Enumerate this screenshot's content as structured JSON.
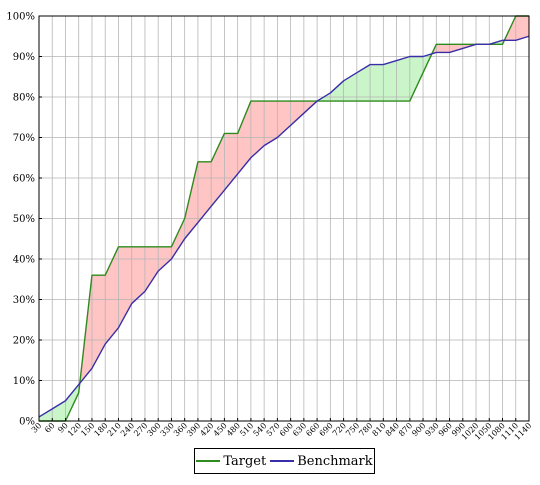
{
  "chart_data": {
    "type": "line",
    "title": "",
    "xlabel": "",
    "ylabel": "",
    "x": [
      30,
      60,
      90,
      120,
      150,
      180,
      210,
      240,
      270,
      300,
      330,
      360,
      390,
      420,
      450,
      480,
      510,
      540,
      570,
      600,
      630,
      660,
      690,
      720,
      750,
      780,
      810,
      840,
      870,
      900,
      930,
      960,
      990,
      1020,
      1050,
      1080,
      1110,
      1140
    ],
    "xticks": [
      "30",
      "60",
      "90",
      "120",
      "150",
      "180",
      "210",
      "240",
      "270",
      "300",
      "330",
      "360",
      "390",
      "420",
      "450",
      "480",
      "510",
      "540",
      "570",
      "600",
      "630",
      "660",
      "690",
      "720",
      "750",
      "780",
      "810",
      "840",
      "870",
      "900",
      "930",
      "960",
      "990",
      "1020",
      "1050",
      "1080",
      "1110",
      "1140"
    ],
    "yticks": [
      "0%",
      "10%",
      "20%",
      "30%",
      "40%",
      "50%",
      "60%",
      "70%",
      "80%",
      "90%",
      "100%"
    ],
    "xlim": [
      30,
      1140
    ],
    "ylim": [
      0,
      100
    ],
    "grid": true,
    "legend_position": "bottom-center",
    "series": [
      {
        "name": "Target",
        "color": "#2e8b1e",
        "values": [
          0,
          0,
          0,
          7,
          36,
          36,
          43,
          43,
          43,
          43,
          43,
          50,
          64,
          64,
          71,
          71,
          79,
          79,
          79,
          79,
          79,
          79,
          79,
          79,
          79,
          79,
          79,
          79,
          79,
          86,
          93,
          93,
          93,
          93,
          93,
          93,
          100,
          100
        ]
      },
      {
        "name": "Benchmark",
        "color": "#3a2ea8",
        "values": [
          1,
          3,
          5,
          9,
          13,
          19,
          23,
          29,
          32,
          37,
          40,
          45,
          49,
          53,
          57,
          61,
          65,
          68,
          70,
          73,
          76,
          79,
          81,
          84,
          86,
          88,
          88,
          89,
          90,
          90,
          91,
          91,
          92,
          93,
          93,
          94,
          94,
          95
        ]
      }
    ],
    "fill_colors": {
      "target_above": "#ffc4c4",
      "target_below": "#c9f5c9"
    }
  }
}
